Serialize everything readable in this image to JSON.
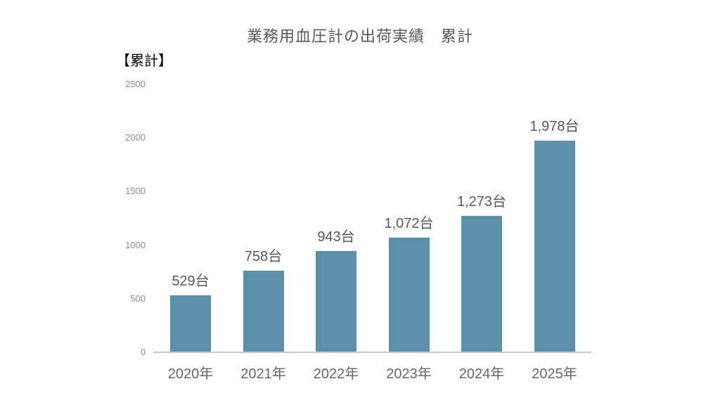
{
  "chart_data": {
    "type": "bar",
    "title": "業務用血圧計の出荷実績　累計",
    "y_axis_title": "【累計】",
    "categories": [
      "2020年",
      "2021年",
      "2022年",
      "2023年",
      "2024年",
      "2025年"
    ],
    "values": [
      529,
      758,
      943,
      1072,
      1273,
      1978
    ],
    "data_labels": [
      "529台",
      "758台",
      "943台",
      "1,072台",
      "1,273台",
      "1,978台"
    ],
    "unit_suffix": "台",
    "yticks": [
      0,
      500,
      1000,
      1500,
      2000,
      2500
    ],
    "ylim": [
      0,
      2500
    ],
    "xlabel": "",
    "ylabel": "【累計】",
    "legend": "none",
    "grid": false
  },
  "colors": {
    "background": "#ffffff",
    "bar": "#5c8fa8",
    "title_text": "#595959",
    "axis_title_text": "#000000",
    "tick_text": "#8e8e8e",
    "category_text": "#666666",
    "data_label_text": "#595959",
    "axis_line": "#c9c9c9"
  }
}
